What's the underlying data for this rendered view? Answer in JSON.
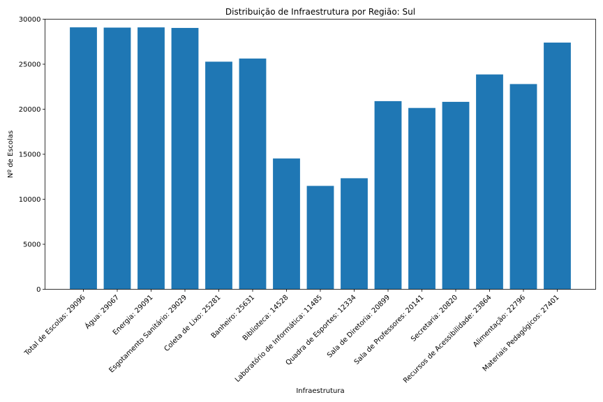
{
  "chart_data": {
    "type": "bar",
    "title": "Distribuição de Infraestrutura por Região: Sul",
    "xlabel": "Infraestrutura",
    "ylabel": "Nº de Escolas",
    "categories": [
      "Total de Escolas: 29096",
      "Água: 29067",
      "Energia: 29091",
      "Esgotamento Sanitário: 29029",
      "Coleta de Lixo: 25281",
      "Banheiro: 25631",
      "Biblioteca: 14528",
      "Laboratório de Informática: 11485",
      "Quadra de Esportes: 12334",
      "Sala de Diretoria: 20899",
      "Sala de Professores: 20141",
      "Secretaria: 20820",
      "Recursos de Acessibilidade: 23864",
      "Alimentação: 22796",
      "Materiais Pedagógicos: 27401"
    ],
    "values": [
      29096,
      29067,
      29091,
      29029,
      25281,
      25631,
      14528,
      11485,
      12334,
      20899,
      20141,
      20820,
      23864,
      22796,
      27401
    ],
    "ylim": [
      0,
      30000
    ],
    "yticks": [
      0,
      5000,
      10000,
      15000,
      20000,
      25000,
      30000
    ],
    "grid": false,
    "bar_color": "#1f77b4"
  }
}
